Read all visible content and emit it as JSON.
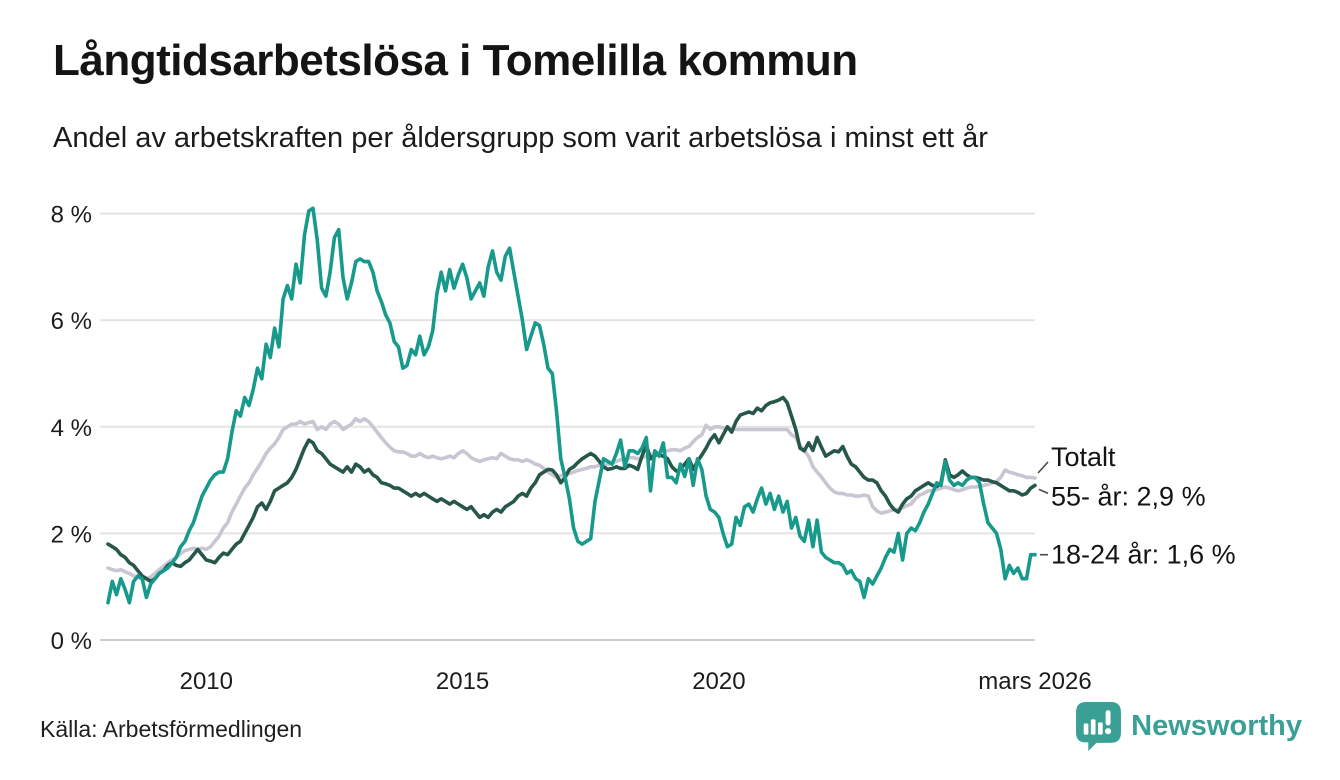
{
  "chart_data": {
    "type": "line",
    "title": "Långtidsarbetslösa i Tomelilla kommun",
    "subtitle": "Andel av arbetskraften per åldersgrupp som varit arbetslösa i minst ett år",
    "unit": "%",
    "grid": "horizontal",
    "legend_position": "end-of-line-labels",
    "x_range": [
      2008.0833,
      2026.1667
    ],
    "y_range": [
      0,
      8
    ],
    "y_ticks": [
      {
        "value": 0,
        "label": "0 %"
      },
      {
        "value": 2,
        "label": "2 %"
      },
      {
        "value": 4,
        "label": "4 %"
      },
      {
        "value": 6,
        "label": "6 %"
      },
      {
        "value": 8,
        "label": "8 %"
      }
    ],
    "x_ticks": [
      {
        "year": 2010,
        "label": "2010"
      },
      {
        "year": 2015,
        "label": "2015"
      },
      {
        "year": 2020,
        "label": "2020"
      },
      {
        "year": 2026.1667,
        "label": "mars 2026"
      }
    ],
    "series": [
      {
        "id": "totalt",
        "name": "Totalt",
        "color": "#c9c5d2",
        "end_label": "Totalt",
        "start_year": 2008.0833,
        "points_per_year": 12,
        "values": [
          1.35,
          1.32,
          1.3,
          1.32,
          1.28,
          1.25,
          1.2,
          1.18,
          1.15,
          1.15,
          1.18,
          1.25,
          1.32,
          1.38,
          1.45,
          1.5,
          1.55,
          1.62,
          1.68,
          1.7,
          1.72,
          1.7,
          1.72,
          1.7,
          1.75,
          1.85,
          1.95,
          2.1,
          2.2,
          2.4,
          2.55,
          2.7,
          2.85,
          2.95,
          3.1,
          3.22,
          3.35,
          3.5,
          3.6,
          3.68,
          3.8,
          3.95,
          4.0,
          4.05,
          4.05,
          4.1,
          4.05,
          4.08,
          4.1,
          3.95,
          4.0,
          3.95,
          4.05,
          4.1,
          4.05,
          3.95,
          4.0,
          4.05,
          4.15,
          4.1,
          4.15,
          4.1,
          4.0,
          3.9,
          3.8,
          3.7,
          3.62,
          3.55,
          3.53,
          3.53,
          3.5,
          3.45,
          3.45,
          3.5,
          3.45,
          3.42,
          3.45,
          3.42,
          3.4,
          3.42,
          3.45,
          3.42,
          3.5,
          3.55,
          3.5,
          3.42,
          3.38,
          3.35,
          3.38,
          3.4,
          3.42,
          3.4,
          3.5,
          3.45,
          3.4,
          3.38,
          3.38,
          3.35,
          3.38,
          3.35,
          3.3,
          3.28,
          3.22,
          3.15,
          3.1,
          3.05,
          3.08,
          3.1,
          3.12,
          3.15,
          3.18,
          3.2,
          3.22,
          3.25,
          3.25,
          3.28,
          3.28,
          3.3,
          3.32,
          3.35,
          3.38,
          3.4,
          3.42,
          3.42,
          3.4,
          3.42,
          3.45,
          3.48,
          3.5,
          3.52,
          3.55,
          3.55,
          3.57,
          3.57,
          3.55,
          3.6,
          3.63,
          3.72,
          3.8,
          3.85,
          4.03,
          3.95,
          4.0,
          4.0,
          3.98,
          3.98,
          3.95,
          3.95,
          3.95,
          3.95,
          3.95,
          3.95,
          3.95,
          3.95,
          3.95,
          3.95,
          3.95,
          3.95,
          3.95,
          3.95,
          3.85,
          3.8,
          3.65,
          3.55,
          3.45,
          3.25,
          3.15,
          3.06,
          2.95,
          2.85,
          2.78,
          2.75,
          2.75,
          2.72,
          2.72,
          2.7,
          2.7,
          2.72,
          2.7,
          2.5,
          2.42,
          2.38,
          2.4,
          2.42,
          2.45,
          2.45,
          2.48,
          2.52,
          2.55,
          2.65,
          2.72,
          2.75,
          2.8,
          2.8,
          2.82,
          2.85,
          2.87,
          2.85,
          2.82,
          2.8,
          2.82,
          2.85,
          2.87,
          2.87,
          2.88,
          2.9,
          2.92,
          2.95,
          2.97,
          3.05,
          3.19,
          3.15,
          3.13,
          3.1,
          3.08,
          3.05,
          3.05,
          3.04
        ]
      },
      {
        "id": "55plus",
        "name": "55- år",
        "color": "#27574b",
        "end_label": "55- år: 2,9 %",
        "start_year": 2008.0833,
        "points_per_year": 12,
        "values": [
          1.8,
          1.75,
          1.7,
          1.6,
          1.55,
          1.45,
          1.4,
          1.3,
          1.2,
          1.15,
          1.1,
          1.15,
          1.25,
          1.3,
          1.4,
          1.45,
          1.4,
          1.38,
          1.45,
          1.5,
          1.6,
          1.7,
          1.6,
          1.5,
          1.48,
          1.45,
          1.55,
          1.63,
          1.6,
          1.7,
          1.8,
          1.85,
          2.0,
          2.15,
          2.3,
          2.5,
          2.57,
          2.45,
          2.6,
          2.8,
          2.85,
          2.9,
          2.95,
          3.05,
          3.2,
          3.4,
          3.6,
          3.75,
          3.7,
          3.55,
          3.5,
          3.4,
          3.3,
          3.25,
          3.2,
          3.15,
          3.25,
          3.15,
          3.3,
          3.25,
          3.15,
          3.2,
          3.1,
          3.05,
          2.95,
          2.93,
          2.9,
          2.85,
          2.85,
          2.8,
          2.75,
          2.7,
          2.75,
          2.7,
          2.75,
          2.7,
          2.65,
          2.6,
          2.65,
          2.6,
          2.55,
          2.6,
          2.55,
          2.5,
          2.45,
          2.5,
          2.4,
          2.3,
          2.35,
          2.3,
          2.4,
          2.45,
          2.4,
          2.5,
          2.55,
          2.6,
          2.7,
          2.75,
          2.7,
          2.85,
          2.95,
          3.1,
          3.15,
          3.2,
          3.19,
          3.1,
          2.95,
          3.05,
          3.2,
          3.25,
          3.33,
          3.4,
          3.45,
          3.5,
          3.45,
          3.35,
          3.25,
          3.2,
          3.22,
          3.25,
          3.22,
          3.22,
          3.28,
          3.25,
          3.2,
          3.45,
          3.66,
          3.4,
          3.47,
          3.47,
          3.45,
          3.4,
          3.25,
          3.17,
          3.2,
          3.3,
          3.4,
          3.2,
          3.35,
          3.47,
          3.6,
          3.75,
          3.85,
          3.7,
          3.85,
          4.0,
          3.9,
          4.1,
          4.22,
          4.25,
          4.28,
          4.25,
          4.35,
          4.3,
          4.4,
          4.45,
          4.47,
          4.5,
          4.55,
          4.45,
          4.2,
          3.95,
          3.6,
          3.55,
          3.7,
          3.56,
          3.8,
          3.62,
          3.45,
          3.5,
          3.55,
          3.53,
          3.63,
          3.45,
          3.3,
          3.25,
          3.15,
          3.05,
          3.0,
          3.0,
          2.95,
          2.8,
          2.7,
          2.55,
          2.45,
          2.4,
          2.55,
          2.65,
          2.7,
          2.8,
          2.85,
          2.9,
          2.95,
          2.9,
          2.88,
          2.95,
          3.38,
          3.1,
          3.05,
          3.1,
          3.17,
          3.1,
          3.05,
          3.05,
          3.03,
          3.0,
          3.0,
          2.97,
          2.95,
          2.9,
          2.85,
          2.8,
          2.8,
          2.77,
          2.72,
          2.75,
          2.85,
          2.9
        ]
      },
      {
        "id": "18-24",
        "name": "18-24 år",
        "color": "#179a8c",
        "end_label": "18-24 år: 1,6 %",
        "start_year": 2008.0833,
        "points_per_year": 12,
        "values": [
          0.7,
          1.1,
          0.85,
          1.15,
          0.95,
          0.7,
          1.1,
          1.2,
          1.15,
          0.8,
          1.05,
          1.15,
          1.25,
          1.3,
          1.35,
          1.45,
          1.55,
          1.75,
          1.85,
          2.05,
          2.2,
          2.45,
          2.7,
          2.85,
          3.0,
          3.1,
          3.15,
          3.15,
          3.4,
          3.9,
          4.3,
          4.2,
          4.55,
          4.4,
          4.7,
          5.1,
          4.9,
          5.55,
          5.3,
          5.85,
          5.5,
          6.4,
          6.65,
          6.4,
          7.05,
          6.7,
          7.6,
          8.05,
          8.1,
          7.5,
          6.6,
          6.45,
          6.9,
          7.55,
          7.7,
          6.8,
          6.4,
          6.7,
          7.1,
          7.15,
          7.1,
          7.1,
          6.9,
          6.55,
          6.35,
          6.1,
          5.95,
          5.6,
          5.5,
          5.1,
          5.15,
          5.45,
          5.35,
          5.7,
          5.35,
          5.5,
          5.8,
          6.5,
          6.9,
          6.55,
          6.95,
          6.6,
          6.85,
          7.05,
          6.8,
          6.4,
          6.55,
          6.7,
          6.45,
          7.0,
          7.3,
          6.9,
          6.75,
          7.2,
          7.35,
          6.9,
          6.45,
          6.0,
          5.45,
          5.7,
          5.95,
          5.9,
          5.55,
          5.1,
          5.0,
          4.3,
          3.4,
          3.05,
          2.65,
          2.1,
          1.85,
          1.8,
          1.85,
          1.9,
          2.6,
          3.0,
          3.4,
          3.35,
          3.3,
          3.5,
          3.75,
          3.25,
          3.55,
          3.55,
          3.5,
          3.6,
          3.8,
          2.8,
          3.55,
          3.45,
          3.7,
          3.05,
          3.05,
          2.95,
          3.3,
          3.07,
          3.4,
          2.9,
          3.4,
          3.2,
          2.7,
          2.45,
          2.4,
          2.3,
          2.0,
          1.75,
          1.8,
          2.3,
          2.15,
          2.5,
          2.55,
          2.4,
          2.65,
          2.85,
          2.55,
          2.75,
          2.45,
          2.7,
          2.4,
          2.6,
          2.1,
          2.3,
          1.95,
          1.85,
          2.25,
          1.75,
          2.25,
          1.65,
          1.55,
          1.5,
          1.45,
          1.45,
          1.4,
          1.25,
          1.3,
          1.15,
          1.1,
          0.8,
          1.15,
          1.05,
          1.2,
          1.35,
          1.55,
          1.7,
          1.65,
          2.0,
          1.5,
          2.0,
          2.1,
          2.05,
          2.2,
          2.4,
          2.55,
          2.75,
          2.95,
          2.9,
          3.35,
          3.0,
          2.9,
          2.95,
          2.9,
          3.0,
          3.05,
          3.05,
          2.95,
          2.55,
          2.2,
          2.1,
          2.0,
          1.7,
          1.15,
          1.4,
          1.25,
          1.35,
          1.15,
          1.15,
          1.6,
          1.6
        ]
      }
    ]
  },
  "footer": {
    "source": "Källa: Arbetsförmedlingen",
    "brand": "Newsworthy"
  },
  "colors": {
    "teal_series": "#179a8c",
    "dark_green_series": "#27574b",
    "total_gray_series": "#c9c5d2",
    "grid": "#e4e4e4",
    "grid_zero": "#cdcdcd",
    "connector": "#4a4a4a",
    "brand_teal": "#3aa096",
    "text": "#1b1b1b"
  }
}
